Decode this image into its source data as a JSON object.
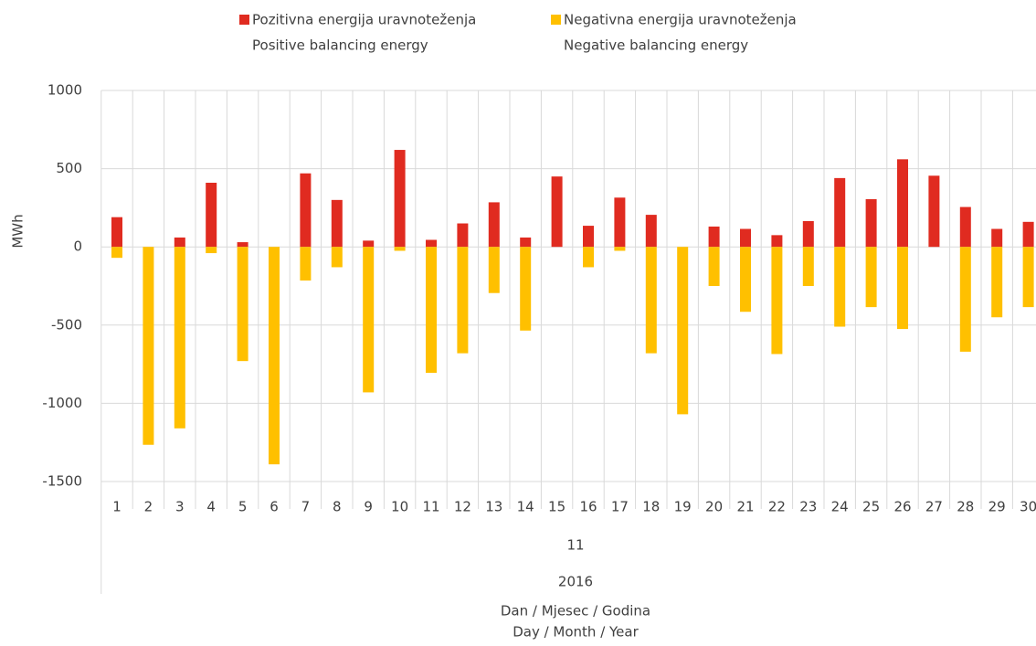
{
  "chart_data": {
    "type": "bar",
    "categories": [
      "1",
      "2",
      "3",
      "4",
      "5",
      "6",
      "7",
      "8",
      "9",
      "10",
      "11",
      "12",
      "13",
      "14",
      "15",
      "16",
      "17",
      "18",
      "19",
      "20",
      "21",
      "22",
      "23",
      "24",
      "25",
      "26",
      "27",
      "28",
      "29",
      "30"
    ],
    "month": "11",
    "year": "2016",
    "x_label": [
      "Dan / Mjesec / Godina",
      "Day / Month / Year"
    ],
    "y_label": "MWh",
    "series": [
      {
        "name": [
          "Pozitivna energija uravnoteženja",
          "Positive balancing energy"
        ],
        "color": "#e02b20",
        "values": [
          190,
          0,
          60,
          410,
          30,
          0,
          470,
          300,
          40,
          620,
          45,
          150,
          285,
          60,
          450,
          135,
          315,
          205,
          0,
          130,
          115,
          75,
          165,
          440,
          305,
          560,
          455,
          255,
          115,
          160
        ]
      },
      {
        "name": [
          "Negativna energija uravnoteženja",
          "Negative balancing energy"
        ],
        "color": "#ffc000",
        "values": [
          -70,
          -1265,
          -1160,
          -40,
          -730,
          -1390,
          -215,
          -130,
          -930,
          -25,
          -805,
          -680,
          -295,
          -535,
          0,
          -130,
          -25,
          -680,
          -1070,
          -250,
          -415,
          -685,
          -250,
          -510,
          -385,
          -525,
          0,
          -670,
          -450,
          -385
        ]
      }
    ],
    "ylim": [
      -1500,
      1000
    ],
    "yticks": [
      1000,
      500,
      0,
      -500,
      -1000,
      -1500
    ],
    "grid": true
  }
}
